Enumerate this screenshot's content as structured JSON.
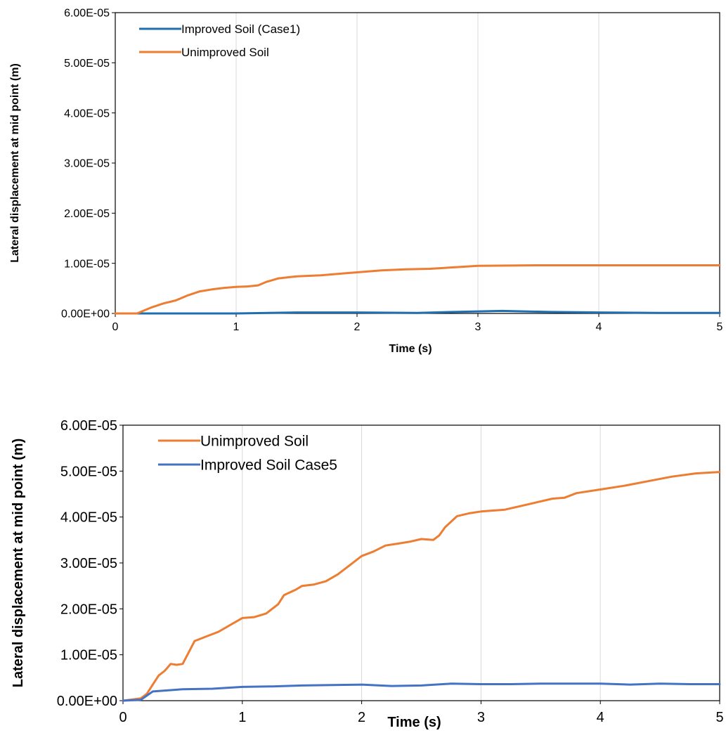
{
  "chart_data": [
    {
      "type": "line",
      "title": "",
      "xlabel": "Time (s)",
      "ylabel": "Lateral displacement at mid point (m)",
      "xlim": [
        0,
        5
      ],
      "ylim": [
        0,
        6e-05
      ],
      "x_ticks": [
        "0",
        "1",
        "2",
        "3",
        "4",
        "5"
      ],
      "y_ticks": [
        "0.00E+00",
        "1.00E-05",
        "2.00E-05",
        "3.00E-05",
        "4.00E-05",
        "5.00E-05",
        "6.00E-05"
      ],
      "grid": "vertical",
      "legend_position": "top-left",
      "series": [
        {
          "name": "Improved Soil (Case1)",
          "color": "#1f6fb0",
          "points": [
            [
              0,
              0
            ],
            [
              0.5,
              0
            ],
            [
              1.0,
              0
            ],
            [
              1.5,
              2e-07
            ],
            [
              2.0,
              2e-07
            ],
            [
              2.5,
              1e-07
            ],
            [
              2.8,
              3e-07
            ],
            [
              3.2,
              5e-07
            ],
            [
              3.6,
              3e-07
            ],
            [
              4.0,
              2e-07
            ],
            [
              4.5,
              1e-07
            ],
            [
              5.0,
              1e-07
            ]
          ]
        },
        {
          "name": "Unimproved Soil",
          "color": "#ed7d31",
          "points": [
            [
              0,
              0
            ],
            [
              0.18,
              0
            ],
            [
              0.3,
              1.2e-06
            ],
            [
              0.4,
              2e-06
            ],
            [
              0.5,
              2.6e-06
            ],
            [
              0.6,
              3.6e-06
            ],
            [
              0.7,
              4.4e-06
            ],
            [
              0.8,
              4.8e-06
            ],
            [
              0.9,
              5.1e-06
            ],
            [
              1.0,
              5.3e-06
            ],
            [
              1.1,
              5.4e-06
            ],
            [
              1.18,
              5.6e-06
            ],
            [
              1.25,
              6.3e-06
            ],
            [
              1.35,
              7e-06
            ],
            [
              1.5,
              7.4e-06
            ],
            [
              1.7,
              7.6e-06
            ],
            [
              1.9,
              8e-06
            ],
            [
              2.0,
              8.2e-06
            ],
            [
              2.2,
              8.6e-06
            ],
            [
              2.4,
              8.8e-06
            ],
            [
              2.6,
              8.9e-06
            ],
            [
              2.8,
              9.2e-06
            ],
            [
              3.0,
              9.5e-06
            ],
            [
              3.5,
              9.6e-06
            ],
            [
              4.0,
              9.6e-06
            ],
            [
              4.5,
              9.6e-06
            ],
            [
              5.0,
              9.6e-06
            ]
          ]
        }
      ]
    },
    {
      "type": "line",
      "title": "",
      "xlabel": "Time (s)",
      "ylabel": "Lateral displacement at mid point (m)",
      "xlim": [
        0,
        5
      ],
      "ylim": [
        0,
        6e-05
      ],
      "x_ticks": [
        "0",
        "1",
        "2",
        "3",
        "4",
        "5"
      ],
      "y_ticks": [
        "0.00E+00",
        "1.00E-05",
        "2.00E-05",
        "3.00E-05",
        "4.00E-05",
        "5.00E-05",
        "6.00E-05"
      ],
      "grid": "vertical",
      "legend_position": "top-left",
      "series": [
        {
          "name": "Unimproved Soil",
          "color": "#ed7d31",
          "points": [
            [
              0,
              0
            ],
            [
              0.15,
              5e-07
            ],
            [
              0.2,
              1.5e-06
            ],
            [
              0.25,
              3.5e-06
            ],
            [
              0.3,
              5.5e-06
            ],
            [
              0.35,
              6.5e-06
            ],
            [
              0.4,
              8e-06
            ],
            [
              0.45,
              7.8e-06
            ],
            [
              0.5,
              8e-06
            ],
            [
              0.55,
              1.05e-05
            ],
            [
              0.6,
              1.3e-05
            ],
            [
              0.7,
              1.4e-05
            ],
            [
              0.8,
              1.5e-05
            ],
            [
              0.9,
              1.65e-05
            ],
            [
              1.0,
              1.8e-05
            ],
            [
              1.1,
              1.82e-05
            ],
            [
              1.2,
              1.9e-05
            ],
            [
              1.3,
              2.1e-05
            ],
            [
              1.35,
              2.3e-05
            ],
            [
              1.45,
              2.42e-05
            ],
            [
              1.5,
              2.5e-05
            ],
            [
              1.6,
              2.53e-05
            ],
            [
              1.7,
              2.6e-05
            ],
            [
              1.8,
              2.75e-05
            ],
            [
              1.9,
              2.95e-05
            ],
            [
              2.0,
              3.15e-05
            ],
            [
              2.1,
              3.25e-05
            ],
            [
              2.2,
              3.38e-05
            ],
            [
              2.3,
              3.42e-05
            ],
            [
              2.4,
              3.46e-05
            ],
            [
              2.5,
              3.52e-05
            ],
            [
              2.6,
              3.5e-05
            ],
            [
              2.65,
              3.6e-05
            ],
            [
              2.7,
              3.78e-05
            ],
            [
              2.8,
              4.02e-05
            ],
            [
              2.9,
              4.08e-05
            ],
            [
              3.0,
              4.12e-05
            ],
            [
              3.2,
              4.16e-05
            ],
            [
              3.4,
              4.28e-05
            ],
            [
              3.6,
              4.4e-05
            ],
            [
              3.7,
              4.42e-05
            ],
            [
              3.8,
              4.52e-05
            ],
            [
              4.0,
              4.6e-05
            ],
            [
              4.2,
              4.68e-05
            ],
            [
              4.4,
              4.78e-05
            ],
            [
              4.6,
              4.88e-05
            ],
            [
              4.8,
              4.95e-05
            ],
            [
              5.0,
              4.98e-05
            ]
          ]
        },
        {
          "name": "Improved Soil Case5",
          "color": "#4472c4",
          "points": [
            [
              0,
              0
            ],
            [
              0.15,
              2e-07
            ],
            [
              0.25,
              2e-06
            ],
            [
              0.5,
              2.5e-06
            ],
            [
              0.75,
              2.6e-06
            ],
            [
              1.0,
              3e-06
            ],
            [
              1.25,
              3.1e-06
            ],
            [
              1.5,
              3.3e-06
            ],
            [
              1.75,
              3.4e-06
            ],
            [
              2.0,
              3.5e-06
            ],
            [
              2.25,
              3.2e-06
            ],
            [
              2.5,
              3.3e-06
            ],
            [
              2.75,
              3.7e-06
            ],
            [
              3.0,
              3.6e-06
            ],
            [
              3.25,
              3.6e-06
            ],
            [
              3.5,
              3.7e-06
            ],
            [
              3.75,
              3.7e-06
            ],
            [
              4.0,
              3.7e-06
            ],
            [
              4.25,
              3.5e-06
            ],
            [
              4.5,
              3.7e-06
            ],
            [
              4.75,
              3.6e-06
            ],
            [
              5.0,
              3.6e-06
            ]
          ]
        }
      ]
    }
  ]
}
